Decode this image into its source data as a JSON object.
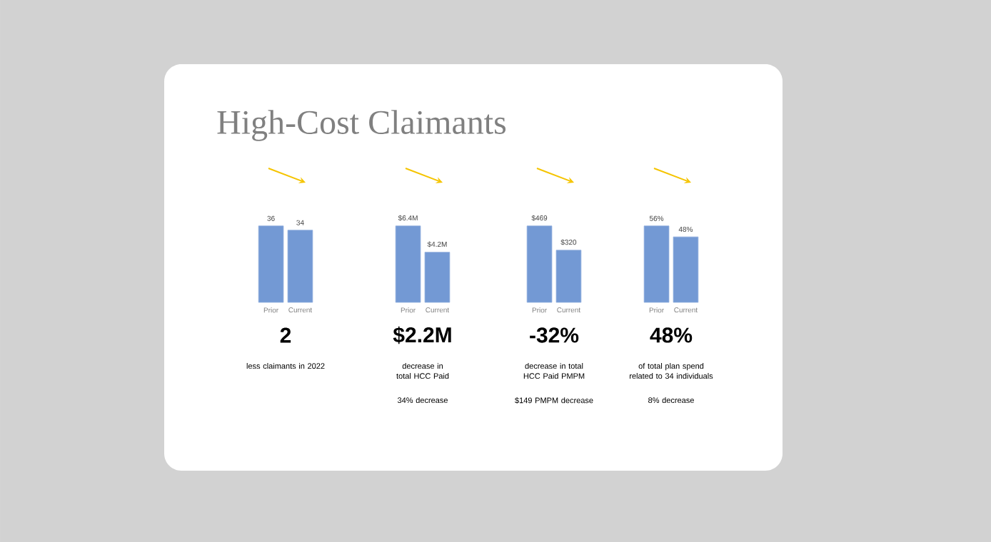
{
  "chart_data": [
    {
      "type": "bar",
      "title": "High-Cost Claimants",
      "categories": [
        "Prior",
        "Current"
      ],
      "values": [
        36,
        34
      ],
      "color": "#7399d4",
      "data_labels": true,
      "annotations": [
        "2",
        "less claimants in 2022"
      ]
    },
    {
      "type": "bar",
      "categories": [
        "Prior",
        "Current"
      ],
      "values": [
        6.4,
        4.2
      ],
      "value_labels": [
        "$6.4M",
        "$4.2M"
      ],
      "color": "#7399d4",
      "annotations": [
        "$2.2M",
        "decrease in total HCC Paid",
        "34% decrease"
      ]
    },
    {
      "type": "bar",
      "categories": [
        "Prior",
        "Current"
      ],
      "values": [
        469,
        320
      ],
      "value_labels": [
        "$469",
        "$320"
      ],
      "color": "#7399d4",
      "annotations": [
        "-32%",
        "decrease in total HCC Paid PMPM",
        "$149 PMPM decrease"
      ]
    },
    {
      "type": "bar",
      "categories": [
        "Prior",
        "Current"
      ],
      "values": [
        56,
        48
      ],
      "value_labels": [
        "56%",
        "48%"
      ],
      "color": "#7399d4",
      "annotations": [
        "48%",
        "of total plan spend related to 34 individuals",
        "8% decrease"
      ]
    }
  ]
}
